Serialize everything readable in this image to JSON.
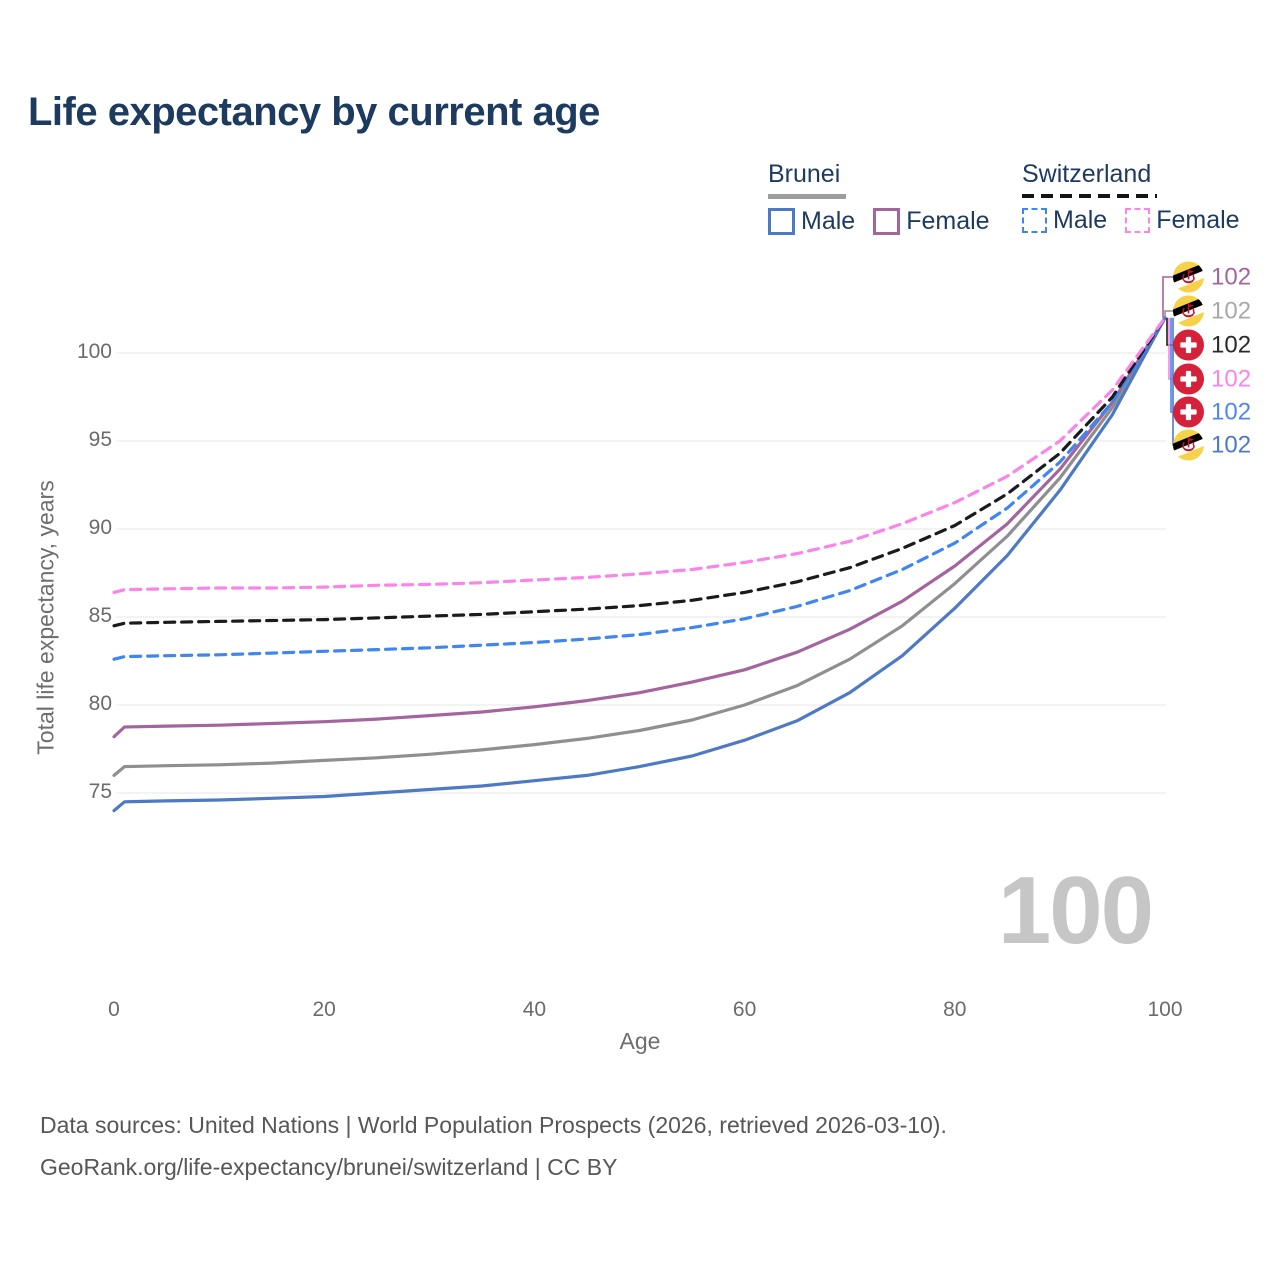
{
  "title": "Life expectancy by current age",
  "legend": {
    "groups": [
      {
        "name": "Brunei",
        "line_style": "solid",
        "underline_color": "#9e9e9e",
        "items": [
          {
            "label": "Male",
            "color": "#4e79c4",
            "dashed": false
          },
          {
            "label": "Female",
            "color": "#a4649e",
            "dashed": false
          }
        ]
      },
      {
        "name": "Switzerland",
        "line_style": "dashed",
        "underline_color": "#141414",
        "items": [
          {
            "label": "Male",
            "color": "#3f86f0",
            "dashed": true
          },
          {
            "label": "Female",
            "color": "#fb84e8",
            "dashed": true
          }
        ]
      }
    ]
  },
  "chart_data": {
    "type": "line",
    "title": "Life expectancy by current age",
    "xlabel": "Age",
    "ylabel": "Total life expectancy, years",
    "x_ticks": [
      0,
      20,
      40,
      60,
      80,
      100
    ],
    "y_ticks": [
      75,
      80,
      85,
      90,
      95,
      100
    ],
    "xlim": [
      0,
      100
    ],
    "ylim": [
      73,
      103
    ],
    "grid": "horizontal",
    "gridline_color": "#e7e7e7",
    "ages": [
      0,
      1,
      5,
      10,
      15,
      20,
      25,
      30,
      35,
      40,
      45,
      50,
      55,
      60,
      65,
      70,
      75,
      80,
      85,
      90,
      95,
      100
    ],
    "series": [
      {
        "name": "Brunei",
        "country": "Brunei",
        "sex": "Both sexes",
        "color": "#8f8f8f",
        "dashed": false,
        "values": [
          76.0,
          76.5,
          76.55,
          76.6,
          76.7,
          76.85,
          77.0,
          77.2,
          77.45,
          77.75,
          78.1,
          78.55,
          79.15,
          80.0,
          81.1,
          82.6,
          84.5,
          86.9,
          89.6,
          92.9,
          96.9,
          102
        ]
      },
      {
        "name": "Brunei Female",
        "country": "Brunei",
        "sex": "Female",
        "color": "#a4649e",
        "dashed": false,
        "values": [
          78.2,
          78.75,
          78.8,
          78.85,
          78.95,
          79.05,
          79.2,
          79.4,
          79.6,
          79.9,
          80.25,
          80.7,
          81.3,
          82.0,
          83.0,
          84.3,
          85.9,
          87.9,
          90.3,
          93.4,
          97.2,
          102
        ]
      },
      {
        "name": "Brunei Male",
        "country": "Brunei",
        "sex": "Male",
        "color": "#4e79c4",
        "dashed": false,
        "values": [
          74.0,
          74.5,
          74.55,
          74.6,
          74.7,
          74.8,
          75.0,
          75.2,
          75.4,
          75.7,
          76.0,
          76.5,
          77.1,
          78.0,
          79.1,
          80.7,
          82.8,
          85.5,
          88.5,
          92.2,
          96.5,
          102
        ]
      },
      {
        "name": "Switzerland Male",
        "country": "Switzerland",
        "sex": "Male",
        "color": "#3f86f0",
        "dashed": true,
        "values": [
          82.6,
          82.75,
          82.8,
          82.85,
          82.95,
          83.05,
          83.15,
          83.25,
          83.4,
          83.55,
          83.75,
          84.0,
          84.4,
          84.9,
          85.6,
          86.5,
          87.7,
          89.2,
          91.2,
          93.8,
          97.2,
          102
        ]
      },
      {
        "name": "Switzerland",
        "country": "Switzerland",
        "sex": "Both sexes",
        "color": "#1b1b1b",
        "dashed": true,
        "values": [
          84.5,
          84.65,
          84.7,
          84.75,
          84.8,
          84.85,
          84.95,
          85.05,
          85.15,
          85.3,
          85.45,
          85.65,
          85.95,
          86.4,
          87.0,
          87.8,
          88.9,
          90.2,
          92.0,
          94.3,
          97.5,
          102
        ]
      },
      {
        "name": "Switzerland Female",
        "country": "Switzerland",
        "sex": "Female",
        "color": "#fb84e8",
        "dashed": true,
        "values": [
          86.4,
          86.55,
          86.6,
          86.65,
          86.65,
          86.7,
          86.8,
          86.85,
          86.95,
          87.1,
          87.25,
          87.45,
          87.7,
          88.1,
          88.6,
          89.3,
          90.3,
          91.5,
          93.0,
          95.0,
          97.9,
          102
        ]
      }
    ],
    "legend_position": "top-right"
  },
  "end_labels": [
    {
      "series": "Brunei Female",
      "flag": "brunei",
      "value": "102",
      "color": "#a4649e"
    },
    {
      "series": "Brunei",
      "flag": "brunei",
      "value": "102",
      "color": "#a8a8a8"
    },
    {
      "series": "Switzerland",
      "flag": "switzerland",
      "value": "102",
      "color": "#2a2a2a"
    },
    {
      "series": "Switzerland Female",
      "flag": "switzerland",
      "value": "102",
      "color": "#fb84e8"
    },
    {
      "series": "Switzerland Male",
      "flag": "switzerland",
      "value": "102",
      "color": "#4f87f2"
    },
    {
      "series": "Brunei Male",
      "flag": "brunei",
      "value": "102",
      "color": "#4e79c4"
    }
  ],
  "watermark": "100",
  "footer": {
    "line1": "Data sources: United Nations | World Population Prospects (2026, retrieved 2026-03-10).",
    "line2": "GeoRank.org/life-expectancy/brunei/switzerland | CC BY"
  },
  "colors": {
    "title_text": "#1d3a5f",
    "axis_text": "#6b6b6b",
    "footer_text": "#575757",
    "watermark": "#c6c6c6",
    "brunei_flag_yellow": "#f6d24b",
    "swiss_flag_red": "#d6213a",
    "crest_red": "#c8102e"
  }
}
